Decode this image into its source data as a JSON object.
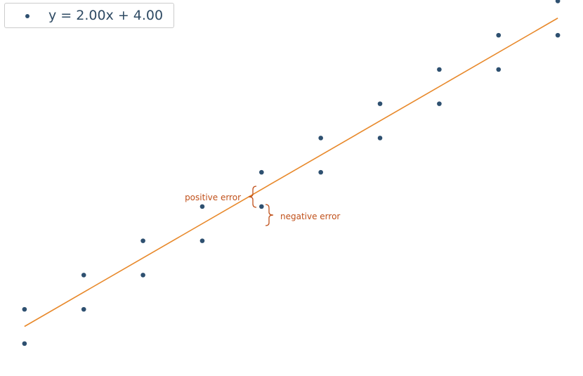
{
  "legend": {
    "label": "y = 2.00x + 4.00"
  },
  "annotations": {
    "positive": "positive error",
    "negative": "negative error"
  },
  "colors": {
    "points": "#2e5070",
    "line": "#e8892b",
    "annotation": "#c0501a",
    "legend_border": "#cccccc"
  },
  "chart_data": {
    "type": "scatter",
    "grid": false,
    "legend_position": "top-left",
    "fit_line": {
      "slope": 2.0,
      "intercept": 4.0
    },
    "xlim": [
      -0.2,
      9.2
    ],
    "ylim": [
      1.6,
      22.4
    ],
    "series": [
      {
        "name": "y = 2.00x + 4.00",
        "x": [
          0,
          0,
          1,
          1,
          2,
          2,
          3,
          3,
          4,
          4,
          5,
          5,
          6,
          6,
          7,
          7,
          8,
          8,
          9,
          9
        ],
        "y": [
          3,
          5,
          5,
          7,
          7,
          9,
          9,
          11,
          11,
          13,
          13,
          15,
          15,
          17,
          17,
          19,
          19,
          21,
          21,
          23
        ]
      }
    ]
  }
}
